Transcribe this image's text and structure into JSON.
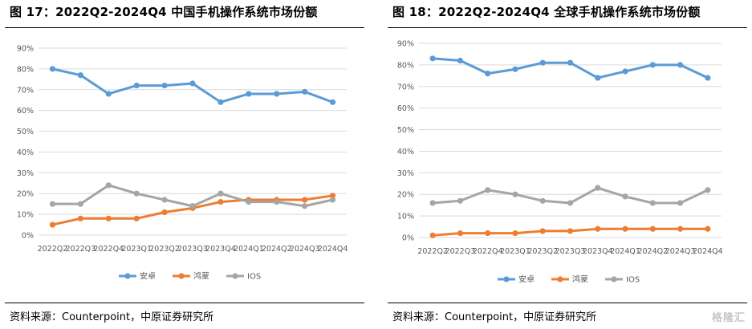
{
  "panels": [
    {
      "title": "图 17：2022Q2-2024Q4  中国手机操作系统市场份额",
      "source": "资料来源：Counterpoint，中原证券研究所"
    },
    {
      "title": "图 18：2022Q2-2024Q4  全球手机操作系统市场份额",
      "source": "资料来源：Counterpoint，中原证券研究所"
    }
  ],
  "watermark": "格隆汇",
  "chart_data": [
    {
      "type": "line",
      "title": "图 17：2022Q2-2024Q4  中国手机操作系统市场份额",
      "categories": [
        "2022Q2",
        "2022Q3",
        "2022Q4",
        "2023Q1",
        "2023Q2",
        "2023Q3",
        "2023Q4",
        "2024Q1",
        "2024Q2",
        "2024Q3",
        "2024Q4"
      ],
      "y_ticks": [
        "0%",
        "10%",
        "20%",
        "30%",
        "40%",
        "50%",
        "60%",
        "70%",
        "80%",
        "90%"
      ],
      "ylim": [
        0,
        90
      ],
      "grid": true,
      "legend": "bottom",
      "series": [
        {
          "name": "安卓",
          "color": "#5B9BD5",
          "values": [
            80,
            77,
            68,
            72,
            72,
            73,
            64,
            68,
            68,
            69,
            64
          ]
        },
        {
          "name": "鸿蒙",
          "color": "#ED7D31",
          "values": [
            5,
            8,
            8,
            8,
            11,
            13,
            16,
            17,
            17,
            17,
            19
          ]
        },
        {
          "name": "IOS",
          "color": "#A5A5A5",
          "values": [
            15,
            15,
            24,
            20,
            17,
            14,
            20,
            16,
            16,
            14,
            17
          ]
        }
      ]
    },
    {
      "type": "line",
      "title": "图 18：2022Q2-2024Q4  全球手机操作系统市场份额",
      "categories": [
        "2022Q2",
        "2022Q3",
        "2022Q4",
        "2023Q1",
        "2023Q2",
        "2023Q3",
        "2023Q4",
        "2024Q1",
        "2024Q2",
        "2024Q3",
        "2024Q4"
      ],
      "y_ticks": [
        "0%",
        "10%",
        "20%",
        "30%",
        "40%",
        "50%",
        "60%",
        "70%",
        "80%",
        "90%"
      ],
      "ylim": [
        0,
        90
      ],
      "grid": true,
      "legend": "bottom",
      "series": [
        {
          "name": "安卓",
          "color": "#5B9BD5",
          "values": [
            83,
            82,
            76,
            78,
            81,
            81,
            74,
            77,
            80,
            80,
            74
          ]
        },
        {
          "name": "鸿蒙",
          "color": "#ED7D31",
          "values": [
            1,
            2,
            2,
            2,
            3,
            3,
            4,
            4,
            4,
            4,
            4
          ]
        },
        {
          "name": "IOS",
          "color": "#A5A5A5",
          "values": [
            16,
            17,
            22,
            20,
            17,
            16,
            23,
            19,
            16,
            16,
            22
          ]
        }
      ]
    }
  ]
}
